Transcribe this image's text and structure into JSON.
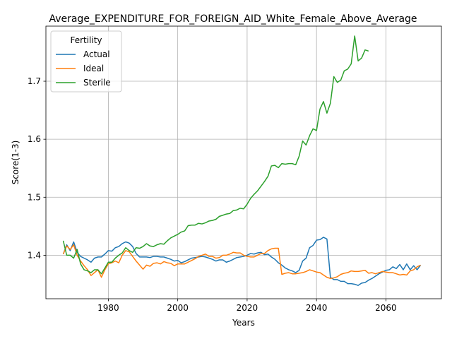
{
  "chart_data": {
    "type": "line",
    "title": "Average_EXPENDITURE_FOR_FOREIGN_AID_White_Female_Above_Average",
    "xlabel": "Years",
    "ylabel": "Score(1-3)",
    "xlim": [
      1962,
      2076
    ],
    "ylim": [
      1.325,
      1.795
    ],
    "xticks": [
      1980,
      2000,
      2020,
      2040,
      2060
    ],
    "yticks": [
      1.4,
      1.5,
      1.6,
      1.7
    ],
    "grid": true,
    "legend": {
      "title": "Fertility",
      "placement": "top-left"
    },
    "colors": {
      "Actual": "#1f77b4",
      "Ideal": "#ff7f0e",
      "Sterile": "#2ca02c"
    },
    "series": [
      {
        "name": "Actual",
        "x": [
          1967,
          1968,
          1969,
          1970,
          1971,
          1972,
          1973,
          1974,
          1975,
          1976,
          1977,
          1978,
          1979,
          1980,
          1981,
          1982,
          1983,
          1984,
          1985,
          1986,
          1987,
          1988,
          1989,
          1990,
          1991,
          1992,
          1993,
          1994,
          1995,
          1996,
          1997,
          1998,
          1999,
          2000,
          2001,
          2002,
          2003,
          2004,
          2005,
          2006,
          2007,
          2008,
          2009,
          2010,
          2011,
          2012,
          2013,
          2014,
          2015,
          2016,
          2017,
          2018,
          2019,
          2020,
          2021,
          2022,
          2023,
          2024,
          2025,
          2026,
          2027,
          2028,
          2029,
          2030,
          2031,
          2032,
          2033,
          2034,
          2035,
          2036,
          2037,
          2038,
          2039,
          2040,
          2041,
          2042,
          2043,
          2044,
          2045,
          2046,
          2047,
          2048,
          2049,
          2050,
          2051,
          2052,
          2053,
          2054,
          2055,
          2056,
          2057,
          2058,
          2059,
          2060,
          2061,
          2062,
          2063,
          2064,
          2065,
          2066,
          2067,
          2068,
          2069,
          2070
        ],
        "values": [
          1.402,
          1.418,
          1.408,
          1.423,
          1.405,
          1.398,
          1.395,
          1.392,
          1.388,
          1.395,
          1.397,
          1.397,
          1.402,
          1.408,
          1.407,
          1.413,
          1.415,
          1.42,
          1.423,
          1.421,
          1.415,
          1.403,
          1.397,
          1.397,
          1.397,
          1.396,
          1.398,
          1.398,
          1.397,
          1.397,
          1.395,
          1.393,
          1.39,
          1.391,
          1.387,
          1.389,
          1.392,
          1.395,
          1.396,
          1.397,
          1.398,
          1.397,
          1.395,
          1.393,
          1.39,
          1.392,
          1.392,
          1.388,
          1.39,
          1.393,
          1.396,
          1.397,
          1.398,
          1.4,
          1.403,
          1.402,
          1.404,
          1.405,
          1.401,
          1.402,
          1.397,
          1.393,
          1.387,
          1.383,
          1.378,
          1.375,
          1.373,
          1.37,
          1.374,
          1.39,
          1.395,
          1.413,
          1.417,
          1.426,
          1.427,
          1.431,
          1.428,
          1.362,
          1.358,
          1.358,
          1.355,
          1.355,
          1.351,
          1.351,
          1.35,
          1.348,
          1.352,
          1.353,
          1.357,
          1.36,
          1.364,
          1.368,
          1.371,
          1.374,
          1.375,
          1.38,
          1.377,
          1.384,
          1.375,
          1.385,
          1.375,
          1.382,
          1.375,
          1.383
        ]
      },
      {
        "name": "Ideal",
        "x": [
          1967,
          1968,
          1969,
          1970,
          1971,
          1972,
          1973,
          1974,
          1975,
          1976,
          1977,
          1978,
          1979,
          1980,
          1981,
          1982,
          1983,
          1984,
          1985,
          1986,
          1987,
          1988,
          1989,
          1990,
          1991,
          1992,
          1993,
          1994,
          1995,
          1996,
          1997,
          1998,
          1999,
          2000,
          2001,
          2002,
          2003,
          2004,
          2005,
          2006,
          2007,
          2008,
          2009,
          2010,
          2011,
          2012,
          2013,
          2014,
          2015,
          2016,
          2017,
          2018,
          2019,
          2020,
          2021,
          2022,
          2023,
          2024,
          2025,
          2026,
          2027,
          2028,
          2029,
          2030,
          2031,
          2032,
          2033,
          2034,
          2035,
          2036,
          2037,
          2038,
          2039,
          2040,
          2041,
          2042,
          2043,
          2044,
          2045,
          2046,
          2047,
          2048,
          2049,
          2050,
          2051,
          2052,
          2053,
          2054,
          2055,
          2056,
          2057,
          2058,
          2059,
          2060,
          2061,
          2062,
          2063,
          2064,
          2065,
          2066,
          2067,
          2068,
          2069,
          2070
        ],
        "values": [
          1.402,
          1.416,
          1.41,
          1.418,
          1.4,
          1.39,
          1.382,
          1.375,
          1.365,
          1.37,
          1.375,
          1.362,
          1.375,
          1.385,
          1.387,
          1.39,
          1.387,
          1.4,
          1.408,
          1.406,
          1.398,
          1.39,
          1.383,
          1.376,
          1.383,
          1.381,
          1.386,
          1.387,
          1.385,
          1.389,
          1.387,
          1.386,
          1.382,
          1.385,
          1.385,
          1.385,
          1.388,
          1.391,
          1.394,
          1.398,
          1.4,
          1.402,
          1.398,
          1.398,
          1.395,
          1.396,
          1.4,
          1.4,
          1.402,
          1.405,
          1.404,
          1.404,
          1.4,
          1.398,
          1.397,
          1.397,
          1.4,
          1.403,
          1.403,
          1.408,
          1.411,
          1.412,
          1.412,
          1.367,
          1.369,
          1.37,
          1.368,
          1.368,
          1.369,
          1.37,
          1.372,
          1.375,
          1.373,
          1.371,
          1.37,
          1.366,
          1.362,
          1.36,
          1.361,
          1.363,
          1.367,
          1.369,
          1.37,
          1.373,
          1.372,
          1.372,
          1.373,
          1.374,
          1.369,
          1.37,
          1.368,
          1.37,
          1.372,
          1.371,
          1.37,
          1.37,
          1.368,
          1.366,
          1.367,
          1.366,
          1.373,
          1.375,
          1.38,
          1.383
        ]
      },
      {
        "name": "Sterile",
        "x": [
          1967,
          1968,
          1969,
          1970,
          1971,
          1972,
          1973,
          1974,
          1975,
          1976,
          1977,
          1978,
          1979,
          1980,
          1981,
          1982,
          1983,
          1984,
          1985,
          1986,
          1987,
          1988,
          1989,
          1990,
          1991,
          1992,
          1993,
          1994,
          1995,
          1996,
          1997,
          1998,
          1999,
          2000,
          2001,
          2002,
          2003,
          2004,
          2005,
          2006,
          2007,
          2008,
          2009,
          2010,
          2011,
          2012,
          2013,
          2014,
          2015,
          2016,
          2017,
          2018,
          2019,
          2020,
          2021,
          2022,
          2023,
          2024,
          2025,
          2026,
          2027,
          2028,
          2029,
          2030,
          2031,
          2032,
          2033,
          2034,
          2035,
          2036,
          2037,
          2038,
          2039,
          2040,
          2041,
          2042,
          2043,
          2044,
          2045,
          2046,
          2047,
          2048,
          2049,
          2050,
          2051,
          2052,
          2053,
          2054,
          2055
        ],
        "values": [
          1.425,
          1.4,
          1.4,
          1.395,
          1.41,
          1.385,
          1.375,
          1.373,
          1.37,
          1.375,
          1.375,
          1.368,
          1.378,
          1.388,
          1.388,
          1.395,
          1.4,
          1.404,
          1.413,
          1.408,
          1.405,
          1.413,
          1.412,
          1.415,
          1.42,
          1.416,
          1.415,
          1.418,
          1.42,
          1.419,
          1.425,
          1.43,
          1.433,
          1.436,
          1.44,
          1.442,
          1.451,
          1.452,
          1.452,
          1.455,
          1.454,
          1.456,
          1.459,
          1.46,
          1.462,
          1.467,
          1.469,
          1.471,
          1.472,
          1.477,
          1.478,
          1.481,
          1.48,
          1.488,
          1.498,
          1.505,
          1.511,
          1.519,
          1.527,
          1.536,
          1.554,
          1.555,
          1.551,
          1.558,
          1.557,
          1.558,
          1.558,
          1.556,
          1.571,
          1.597,
          1.59,
          1.606,
          1.618,
          1.615,
          1.652,
          1.665,
          1.645,
          1.662,
          1.708,
          1.698,
          1.702,
          1.718,
          1.721,
          1.73,
          1.778,
          1.735,
          1.74,
          1.754,
          1.752
        ]
      }
    ]
  }
}
